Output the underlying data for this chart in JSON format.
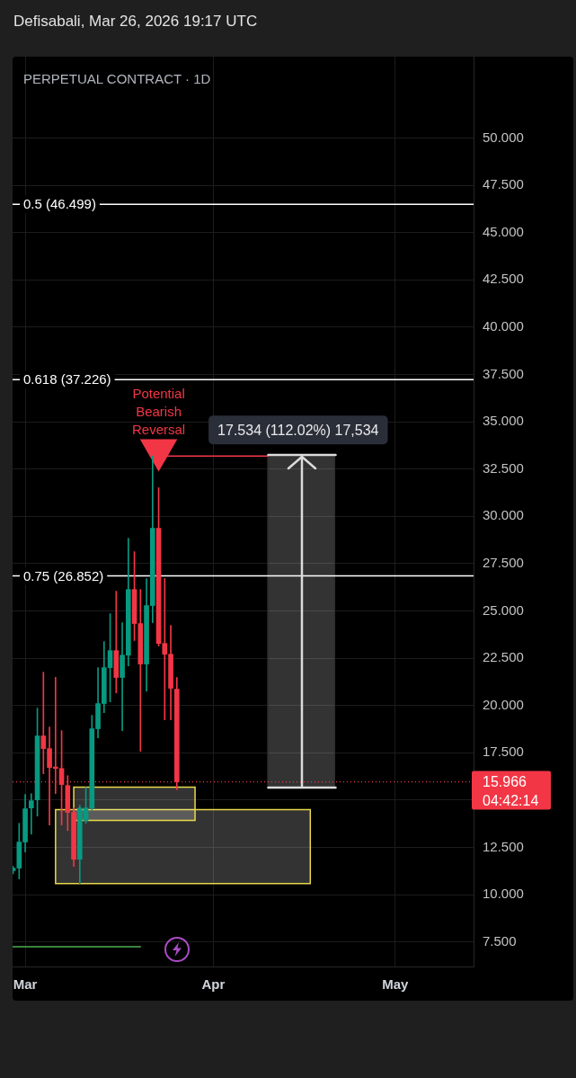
{
  "chart_data": {
    "type": "candlestick",
    "title": "PERPETUAL CONTRACT · 1D",
    "annotations": [
      "Defisabali, Mar 26, 2026 19:17 UTC",
      {
        "text": "17.534 (112.02%) 17,534",
        "x": "2026-04-15",
        "y": 33.19
      }
    ],
    "x": [
      "2026-02-27",
      "2026-02-28",
      "2026-03-01",
      "2026-03-02",
      "2026-03-03",
      "2026-03-04",
      "2026-03-05",
      "2026-03-06",
      "2026-03-07",
      "2026-03-08",
      "2026-03-09",
      "2026-03-10",
      "2026-03-11",
      "2026-03-12",
      "2026-03-13",
      "2026-03-14",
      "2026-03-15",
      "2026-03-16",
      "2026-03-17",
      "2026-03-18",
      "2026-03-19",
      "2026-03-20",
      "2026-03-21",
      "2026-03-22",
      "2026-03-23",
      "2026-03-24",
      "2026-03-25",
      "2026-03-26"
    ],
    "ohlc": [
      [
        11.26,
        11.5,
        11.1,
        11.4
      ],
      [
        11.4,
        13.77,
        10.83,
        12.78
      ],
      [
        12.78,
        15.3,
        12.25,
        14.54
      ],
      [
        14.58,
        15.34,
        13.2,
        14.96
      ],
      [
        15.01,
        19.86,
        14.15,
        18.39
      ],
      [
        18.39,
        21.76,
        16.39,
        17.72
      ],
      [
        17.72,
        18.86,
        13.68,
        16.72
      ],
      [
        16.75,
        21.49,
        15.34,
        16.67
      ],
      [
        16.67,
        18.67,
        13.68,
        15.82
      ],
      [
        15.77,
        16.29,
        13.39,
        14.35
      ],
      [
        14.35,
        14.58,
        11.49,
        11.87
      ],
      [
        11.87,
        14.73,
        10.59,
        14.58
      ],
      [
        13.92,
        15.68,
        13.77,
        14.58
      ],
      [
        14.58,
        19.48,
        14.49,
        18.77
      ],
      [
        18.77,
        22.0,
        18.29,
        20.1
      ],
      [
        20.1,
        23.38,
        19.62,
        22.0
      ],
      [
        22.0,
        24.85,
        20.19,
        22.9
      ],
      [
        22.9,
        26.04,
        20.67,
        21.48
      ],
      [
        21.48,
        24.38,
        18.67,
        22.66
      ],
      [
        22.66,
        28.84,
        22.09,
        26.13
      ],
      [
        26.13,
        28.13,
        23.43,
        24.33
      ],
      [
        24.33,
        26.13,
        17.58,
        22.19
      ],
      [
        22.19,
        26.71,
        20.76,
        25.28
      ],
      [
        25.28,
        33.19,
        24.38,
        29.37
      ],
      [
        29.37,
        31.51,
        23.14,
        23.28
      ],
      [
        23.28,
        26.71,
        19.24,
        22.71
      ],
      [
        22.71,
        24.23,
        19.24,
        20.91
      ],
      [
        20.86,
        21.48,
        15.55,
        15.966
      ]
    ],
    "colors": [
      "#089981",
      "#089981",
      "#089981",
      "#089981",
      "#089981",
      "#f23645",
      "#f23645",
      "#f23645",
      "#f23645",
      "#f23645",
      "#f23645",
      "#089981",
      "#089981",
      "#089981",
      "#089981",
      "#089981",
      "#089981",
      "#f23645",
      "#089981",
      "#089981",
      "#f23645",
      "#f23645",
      "#089981",
      "#089981",
      "#f23645",
      "#f23645",
      "#f23645",
      "#f23645"
    ],
    "series": [
      {
        "type": "area",
        "x": [
          "2026-03-06",
          "2026-04-17"
        ],
        "values": [
          null,
          null
        ],
        "lower": [
          10.59,
          10.59
        ],
        "upper": [
          14.49,
          14.49
        ],
        "color": "#e8d84a"
      },
      {
        "type": "area",
        "x": [
          "2026-03-09",
          "2026-03-29"
        ],
        "values": [
          null,
          null
        ],
        "lower": [
          13.92,
          13.92
        ],
        "upper": [
          15.68,
          15.68
        ],
        "color": "#e8d84a"
      },
      {
        "type": "area",
        "x": [
          "2026-04-10",
          "2026-04-21"
        ],
        "values": [
          null,
          null
        ],
        "lower": [
          15.65,
          15.65
        ],
        "upper": [
          33.19,
          33.19
        ],
        "color": "#2e2e2e"
      },
      {
        "type": "line",
        "x": [
          "2026-03-22",
          "2026-04-10"
        ],
        "values": [
          33.19,
          33.19
        ],
        "color": "#f23645"
      },
      {
        "type": "line",
        "x": [
          "2026-02-27",
          "2026-03-20"
        ],
        "values": [
          7.25,
          7.25
        ],
        "color": "#4caf50"
      },
      {
        "type": "scatter",
        "name": "Potential Bearish Reversal",
        "x": [
          "2026-03-23"
        ],
        "values": [
          33.5
        ],
        "color": "#f23645",
        "marker": "triangle"
      }
    ],
    "xlim": [
      "2026-02-26T22:00",
      "2026-05-13T22:00"
    ],
    "xticks": [
      {
        "value": "2026-03-01",
        "label": "Mar"
      },
      {
        "value": "2026-04-01",
        "label": "Apr"
      },
      {
        "value": "2026-05-01",
        "label": "May"
      }
    ],
    "ylim": [
      6.2,
      54.3
    ],
    "yticks": [
      {
        "value": 7.5,
        "label": "7.500"
      },
      {
        "value": 10,
        "label": "10.000"
      },
      {
        "value": 12.5,
        "label": "12.500"
      },
      {
        "value": 15,
        "label": null
      },
      {
        "value": 17.5,
        "label": "17.500"
      },
      {
        "value": 20,
        "label": "20.000"
      },
      {
        "value": 22.5,
        "label": "22.500"
      },
      {
        "value": 25,
        "label": "25.000"
      },
      {
        "value": 27.5,
        "label": "27.500"
      },
      {
        "value": 30,
        "label": "30.000"
      },
      {
        "value": 32.5,
        "label": "32.500"
      },
      {
        "value": 35,
        "label": "35.000"
      },
      {
        "value": 37.5,
        "label": "37.500"
      },
      {
        "value": 40,
        "label": "40.000"
      },
      {
        "value": 42.5,
        "label": "42.500"
      },
      {
        "value": 45,
        "label": "45.000"
      },
      {
        "value": 47.5,
        "label": "47.500"
      },
      {
        "value": 50,
        "label": "50.000"
      }
    ],
    "ref_lines": [
      {
        "axis": "y",
        "value": 46.499,
        "label": "0.5 (46.499)",
        "color": "#ffffff"
      },
      {
        "axis": "y",
        "value": 37.226,
        "label": "0.618 (37.226)",
        "color": "#ffffff"
      },
      {
        "axis": "y",
        "value": 26.852,
        "label": "0.75 (26.852)",
        "color": "#ffffff"
      },
      {
        "axis": "y",
        "value": 15.966,
        "label": "15.966\n04:42:14",
        "color": "#f23645",
        "line_style": "dotted"
      }
    ],
    "grid": true
  }
}
